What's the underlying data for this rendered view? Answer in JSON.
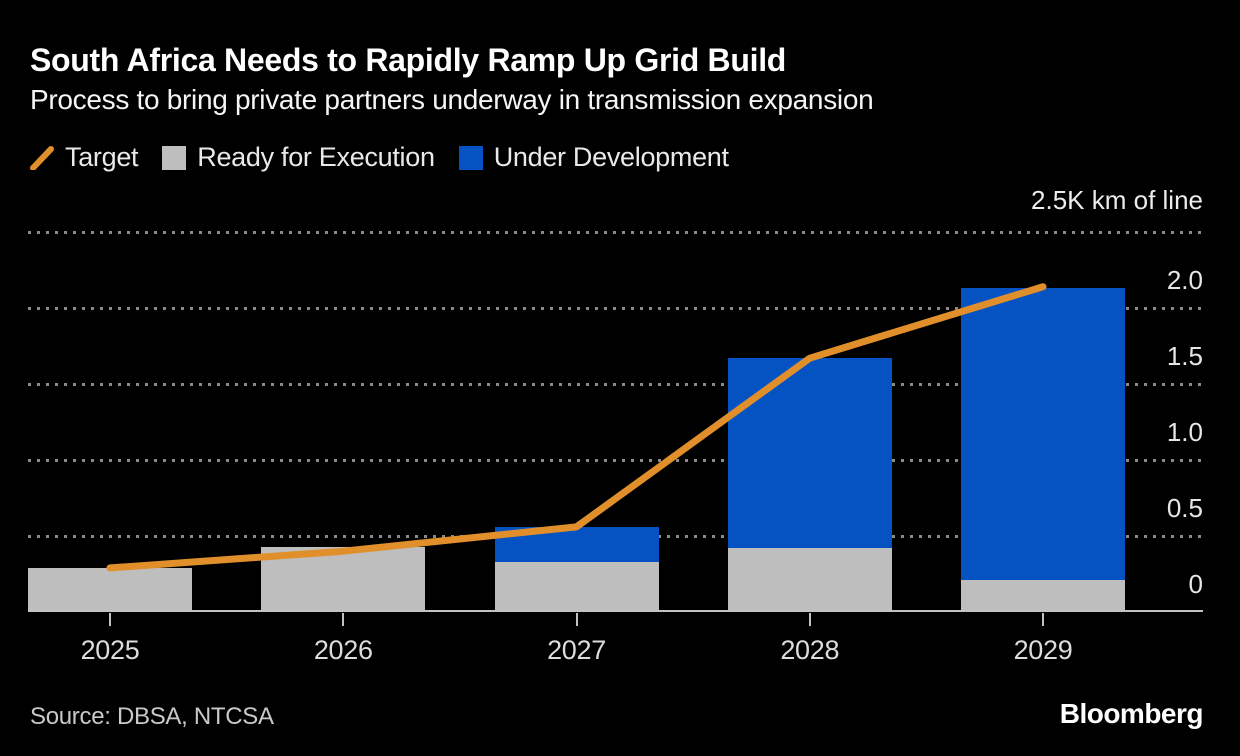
{
  "header": {
    "title": "South Africa Needs to Rapidly Ramp Up Grid Build",
    "subtitle": "Process to bring private partners underway in transmission expansion"
  },
  "legend": {
    "items": [
      {
        "label": "Target",
        "marker": "diagonal-line-icon",
        "color": "#E18F2B"
      },
      {
        "label": "Ready for Execution",
        "marker": "square-icon",
        "color": "#BEBEBE"
      },
      {
        "label": "Under Development",
        "marker": "square-icon",
        "color": "#0553C2"
      }
    ]
  },
  "chart_data": {
    "type": "bar",
    "subtype": "stacked-bars-with-line-overlay",
    "title": "South Africa Needs to Rapidly Ramp Up Grid Build",
    "subtitle": "Process to bring private partners underway in transmission expansion",
    "categories": [
      "2025",
      "2026",
      "2027",
      "2028",
      "2029"
    ],
    "series": [
      {
        "name": "Ready for Execution",
        "type": "bar",
        "color": "#BEBEBE",
        "values": [
          0.29,
          0.43,
          0.33,
          0.42,
          0.21
        ]
      },
      {
        "name": "Under Development",
        "type": "bar",
        "color": "#0553C2",
        "values": [
          0,
          0,
          0.23,
          1.25,
          1.92
        ]
      },
      {
        "name": "Target",
        "type": "line",
        "color": "#E18F2B",
        "values": [
          0.29,
          0.4,
          0.56,
          1.67,
          2.14
        ]
      }
    ],
    "stacked_totals": [
      0.29,
      0.43,
      0.56,
      1.67,
      2.13
    ],
    "unit_label": "2.5K km of line",
    "ylabel": "K km of line",
    "xlabel": "",
    "ylim": [
      0,
      2.5
    ],
    "y_tick_step": 0.5,
    "y_ticks": [
      {
        "value": 2.0,
        "label": "2.0"
      },
      {
        "value": 1.5,
        "label": "1.5"
      },
      {
        "value": 1.0,
        "label": "1.0"
      },
      {
        "value": 0.5,
        "label": "0.5"
      },
      {
        "value": 0.0,
        "label": "0"
      }
    ],
    "grid": "dotted-horizontal",
    "legend_position": "top-left"
  },
  "footer": {
    "source": "Source: DBSA, NTCSA",
    "brand": "Bloomberg"
  },
  "colors": {
    "background": "#000000",
    "target_line": "#E18F2B",
    "ready_bar": "#BEBEBE",
    "under_development_bar": "#0553C2",
    "gridline": "#8A8A8A",
    "axis": "#C2C2C2",
    "title_text": "#FFFFFF",
    "axis_text": "#E6E6E6"
  }
}
